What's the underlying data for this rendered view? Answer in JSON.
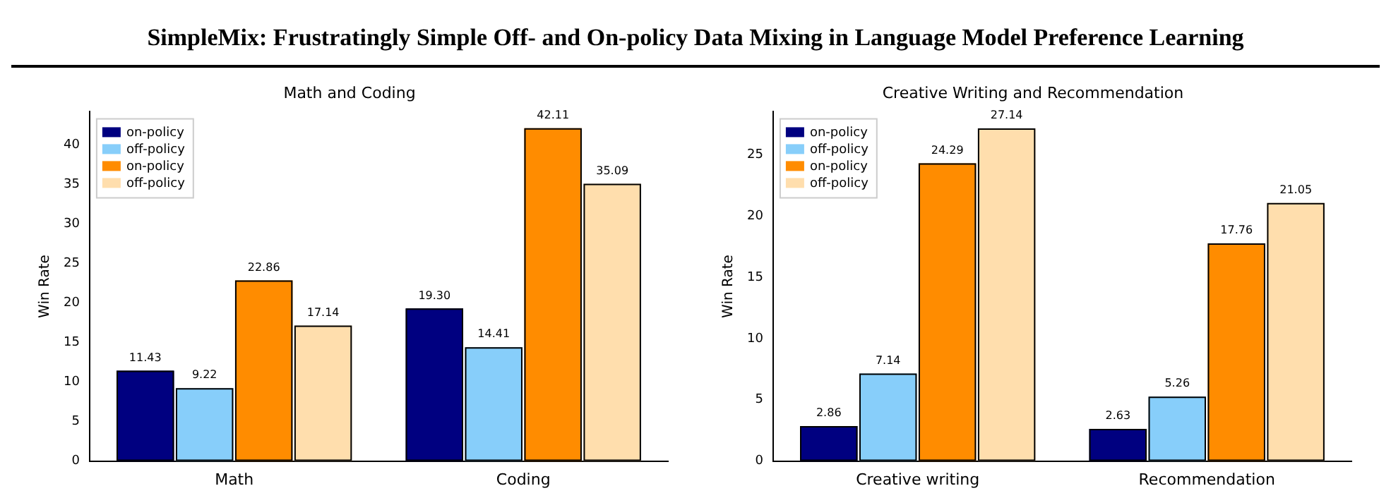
{
  "chart_data": [
    {
      "type": "other",
      "title": "SimpleMix: Frustratingly Simple Off- and On-policy Data Mixing in Language Model Preference Learning"
    },
    {
      "type": "bar",
      "title": "Math and Coding",
      "ylabel": "Win Rate",
      "categories": [
        "Math",
        "Coding"
      ],
      "ylim": [
        0,
        44.2
      ],
      "yticks": [
        0,
        5,
        10,
        15,
        20,
        25,
        30,
        35,
        40
      ],
      "legend": "top left",
      "series": [
        {
          "name": "on-policy",
          "color": "#000080",
          "values": [
            11.43,
            19.3
          ],
          "value_labels": [
            "11.43",
            "19.30"
          ]
        },
        {
          "name": "off-policy",
          "color": "#87cefa",
          "values": [
            9.22,
            14.41
          ],
          "value_labels": [
            "9.22",
            "14.41"
          ]
        },
        {
          "name": "on-policy",
          "color": "#ff8c00",
          "values": [
            22.86,
            42.11
          ],
          "value_labels": [
            "22.86",
            "42.11"
          ]
        },
        {
          "name": "off-policy",
          "color": "#ffdead",
          "values": [
            17.14,
            35.09
          ],
          "value_labels": [
            "17.14",
            "35.09"
          ]
        }
      ]
    },
    {
      "type": "bar",
      "title": "Creative Writing and Recommendation",
      "ylabel": "Win Rate",
      "categories": [
        "Creative writing",
        "Recommendation"
      ],
      "ylim": [
        0,
        28.5
      ],
      "yticks": [
        0,
        5,
        10,
        15,
        20,
        25
      ],
      "legend": "top left",
      "series": [
        {
          "name": "on-policy",
          "color": "#000080",
          "values": [
            2.86,
            2.63
          ],
          "value_labels": [
            "2.86",
            "2.63"
          ]
        },
        {
          "name": "off-policy",
          "color": "#87cefa",
          "values": [
            7.14,
            5.26
          ],
          "value_labels": [
            "7.14",
            "5.26"
          ]
        },
        {
          "name": "on-policy",
          "color": "#ff8c00",
          "values": [
            24.29,
            17.76
          ],
          "value_labels": [
            "24.29",
            "17.76"
          ]
        },
        {
          "name": "off-policy",
          "color": "#ffdead",
          "values": [
            27.14,
            21.05
          ],
          "value_labels": [
            "27.14",
            "21.05"
          ]
        }
      ]
    }
  ]
}
